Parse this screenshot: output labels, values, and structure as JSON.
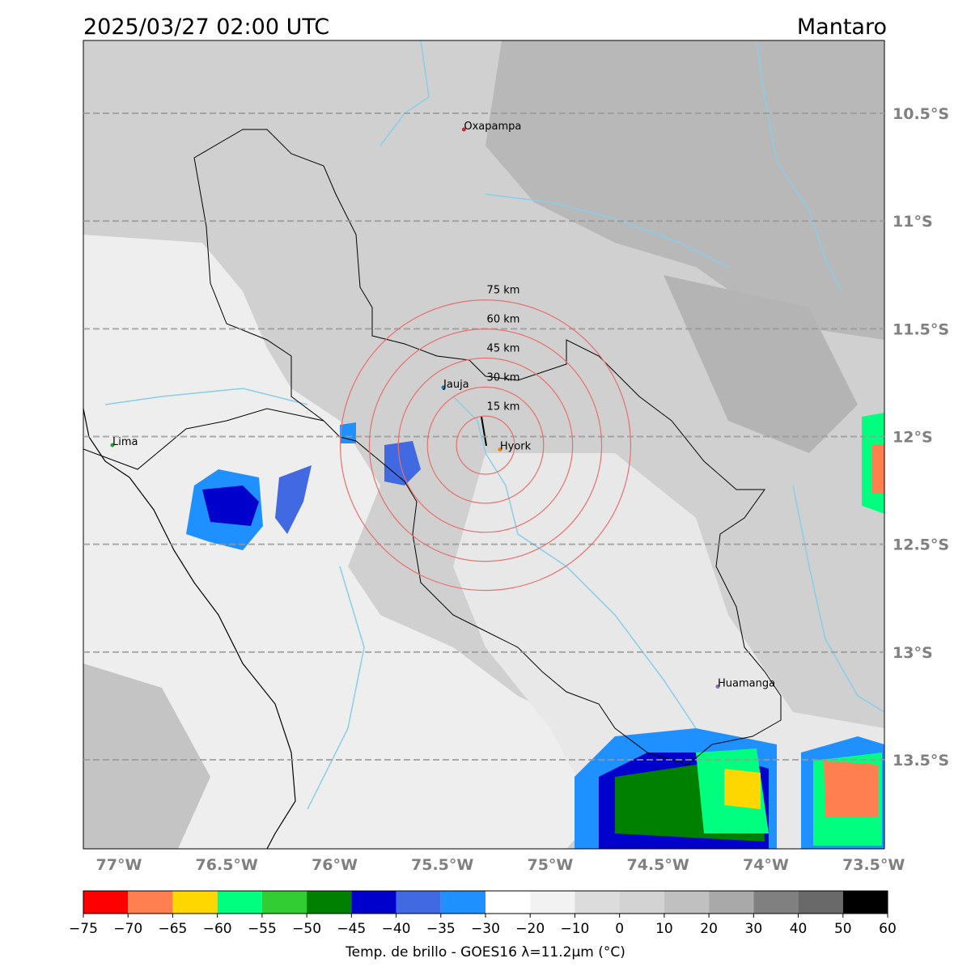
{
  "header": {
    "title": "2025/03/27 02:00 UTC",
    "region": "Mantaro"
  },
  "map": {
    "xlim": [
      -77.165,
      -73.45
    ],
    "ylim": [
      -13.913,
      -10.162
    ],
    "xticks": [
      {
        "value": -77,
        "label": "77°W"
      },
      {
        "value": -76.5,
        "label": "76.5°W"
      },
      {
        "value": -76,
        "label": "76°W"
      },
      {
        "value": -75.5,
        "label": "75.5°W"
      },
      {
        "value": -75,
        "label": "75°W"
      },
      {
        "value": -74.5,
        "label": "74.5°W"
      },
      {
        "value": -74,
        "label": "74°W"
      },
      {
        "value": -73.5,
        "label": "73.5°W"
      }
    ],
    "yticks": [
      {
        "value": -10.5,
        "label": "10.5°S"
      },
      {
        "value": -11,
        "label": "11°S"
      },
      {
        "value": -11.5,
        "label": "11.5°S"
      },
      {
        "value": -12,
        "label": "12°S"
      },
      {
        "value": -12.5,
        "label": "12.5°S"
      },
      {
        "value": -13,
        "label": "13°S"
      },
      {
        "value": -13.5,
        "label": "13.5°S"
      }
    ],
    "cities": [
      {
        "name": "Oxapampa",
        "lon": -75.4,
        "lat": -10.575,
        "color": "#d62728"
      },
      {
        "name": "Jauja",
        "lon": -75.495,
        "lat": -11.772,
        "color": "#1f77b4"
      },
      {
        "name": "Lima",
        "lon": -77.03,
        "lat": -12.04,
        "color": "#2ca02c"
      },
      {
        "name": "Hyork",
        "lon": -75.233,
        "lat": -12.06,
        "color": "#ff7f0e"
      },
      {
        "name": "Huamanga",
        "lon": -74.223,
        "lat": -13.16,
        "color": "#9467bd"
      }
    ],
    "rings": {
      "center_lon": -75.3,
      "center_lat": -12.04,
      "radii_km": [
        15,
        30,
        45,
        60,
        75
      ],
      "labels": [
        "15 km",
        "30 km",
        "45 km",
        "60 km",
        "75 km"
      ],
      "color": "#e8706c"
    }
  },
  "colorbar": {
    "ticks": [
      {
        "value": -75,
        "label": "−75"
      },
      {
        "value": -70,
        "label": "−70"
      },
      {
        "value": -65,
        "label": "−65"
      },
      {
        "value": -60,
        "label": "−60"
      },
      {
        "value": -55,
        "label": "−55"
      },
      {
        "value": -50,
        "label": "−50"
      },
      {
        "value": -45,
        "label": "−45"
      },
      {
        "value": -40,
        "label": "−40"
      },
      {
        "value": -35,
        "label": "−35"
      },
      {
        "value": -30,
        "label": "−30"
      },
      {
        "value": -20,
        "label": "−20"
      },
      {
        "value": -10,
        "label": "−10"
      },
      0,
      10,
      20,
      30,
      40,
      50,
      60
    ],
    "colors": [
      "#ff0000",
      "#ff7f50",
      "#ffd700",
      "#00ff7f",
      "#32cd32",
      "#008000",
      "#0000cd",
      "#4169e1",
      "#1e90ff",
      "#ffffff",
      "#f2f2f2",
      "#dcdcdc",
      "#d3d3d3",
      "#c0c0c0",
      "#a9a9a9",
      "#808080",
      "#696969",
      "#000000"
    ],
    "label": "Temp. de brillo - GOES16 λ=11.2μm (°C)"
  }
}
